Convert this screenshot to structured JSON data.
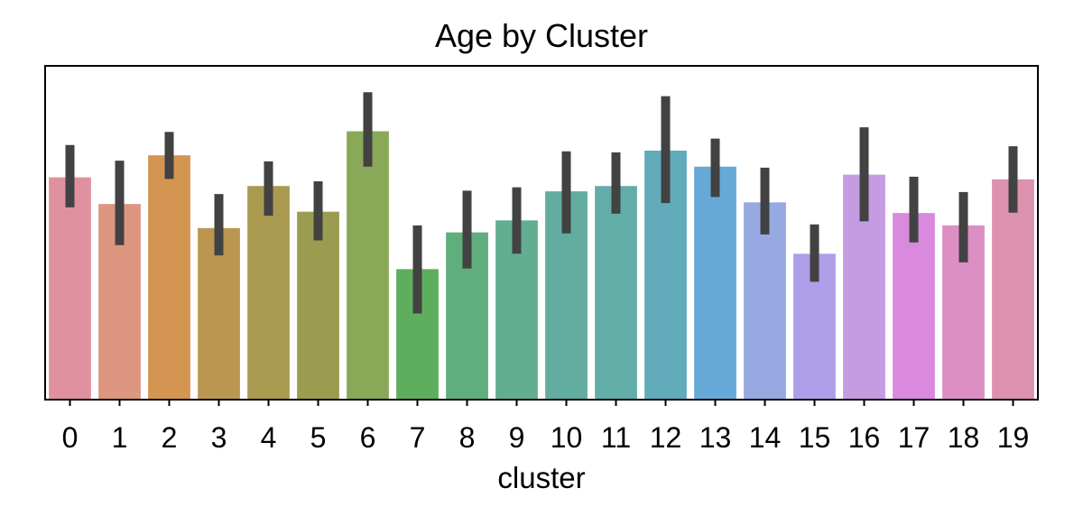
{
  "chart_data": {
    "type": "bar",
    "title": "Age by Cluster",
    "xlabel": "cluster",
    "ylabel": "",
    "y_ticks_visible": false,
    "grid": false,
    "legend": "none",
    "categories": [
      "0",
      "1",
      "2",
      "3",
      "4",
      "5",
      "6",
      "7",
      "8",
      "9",
      "10",
      "11",
      "12",
      "13",
      "14",
      "15",
      "16",
      "17",
      "18",
      "19"
    ],
    "values": [
      66.6,
      58.6,
      73.2,
      51.4,
      64.0,
      56.3,
      80.4,
      39.1,
      50.1,
      53.7,
      62.4,
      64.0,
      74.6,
      69.8,
      59.1,
      43.7,
      67.4,
      55.9,
      52.2,
      66.0
    ],
    "error_low": [
      57.6,
      46.3,
      66.1,
      43.2,
      55.1,
      47.7,
      69.8,
      25.8,
      39.3,
      43.7,
      49.8,
      55.7,
      58.9,
      60.7,
      49.5,
      35.3,
      53.4,
      47.1,
      41.1,
      56.0
    ],
    "error_high": [
      76.3,
      71.6,
      80.2,
      61.6,
      71.4,
      65.4,
      92.1,
      52.2,
      62.6,
      63.6,
      74.4,
      74.1,
      90.9,
      78.2,
      69.5,
      52.5,
      81.6,
      66.8,
      62.2,
      75.9
    ],
    "ylim": [
      0,
      100
    ],
    "bar_colors": [
      "#e0919f",
      "#dd9680",
      "#d59552",
      "#bb9650",
      "#aa9a50",
      "#9a9d4f",
      "#89a958",
      "#5fae5d",
      "#5fae7c",
      "#63ad90",
      "#62ad9f",
      "#63ada9",
      "#62abba",
      "#67a9d6",
      "#97a9e1",
      "#ae9ee8",
      "#c59be1",
      "#d98ade",
      "#dc8fc5",
      "#dc91ae"
    ],
    "error_color": "#424242"
  }
}
